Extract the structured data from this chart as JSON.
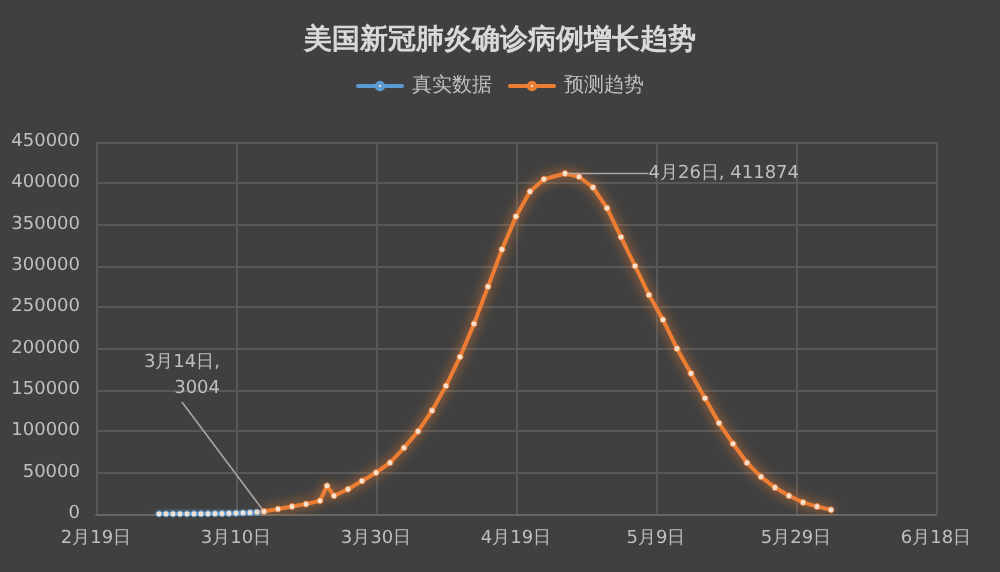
{
  "chart_data": {
    "type": "line",
    "title": "美国新冠肺炎确诊病例增长趋势",
    "series": [
      {
        "name": "真实数据",
        "color": "#5b9bd5",
        "x": [
          "--02-28",
          "--02-29",
          "--03-01",
          "--03-02",
          "--03-03",
          "--03-04",
          "--03-05",
          "--03-06",
          "--03-07",
          "--03-08",
          "--03-09",
          "--03-10",
          "--03-11",
          "--03-12",
          "--03-13",
          "--03-14"
        ],
        "values": [
          100,
          100,
          100,
          100,
          100,
          200,
          200,
          300,
          400,
          500,
          700,
          1000,
          1300,
          1600,
          2200,
          3004
        ]
      },
      {
        "name": "预测趋势",
        "color": "#ed7d31",
        "x": [
          "--03-14",
          "--03-16",
          "--03-18",
          "--03-20",
          "--03-22",
          "--03-23",
          "--03-24",
          "--03-26",
          "--03-28",
          "--03-30",
          "--04-01",
          "--04-03",
          "--04-05",
          "--04-07",
          "--04-09",
          "--04-11",
          "--04-13",
          "--04-15",
          "--04-17",
          "--04-19",
          "--04-21",
          "--04-23",
          "--04-26",
          "--04-28",
          "--04-30",
          "--05-02",
          "--05-04",
          "--05-06",
          "--05-08",
          "--05-10",
          "--05-12",
          "--05-14",
          "--05-16",
          "--05-18",
          "--05-20",
          "--05-22",
          "--05-24",
          "--05-26",
          "--05-28",
          "--05-30",
          "--06-01",
          "--06-03"
        ],
        "values": [
          3004,
          6000,
          9000,
          12000,
          16000,
          34000,
          22000,
          30000,
          40000,
          50000,
          62000,
          80000,
          100000,
          125000,
          155000,
          190000,
          230000,
          275000,
          320000,
          360000,
          390000,
          405000,
          411874,
          408000,
          395000,
          370000,
          335000,
          300000,
          265000,
          235000,
          200000,
          170000,
          140000,
          110000,
          85000,
          62000,
          45000,
          32000,
          22000,
          14000,
          9000,
          5000
        ]
      }
    ],
    "annotations": [
      {
        "text": "3月14日,\n3004",
        "x": "--03-14",
        "y": 3004
      },
      {
        "text": "4月26日, 411874",
        "x": "--04-26",
        "y": 411874
      }
    ],
    "xlim": [
      "--02-19",
      "--06-18"
    ],
    "xticks": [
      {
        "value": "--02-19",
        "label": "2月19日"
      },
      {
        "value": "--03-10",
        "label": "3月10日"
      },
      {
        "value": "--03-30",
        "label": "3月30日"
      },
      {
        "value": "--04-19",
        "label": "4月19日"
      },
      {
        "value": "--05-09",
        "label": "5月9日"
      },
      {
        "value": "--05-29",
        "label": "5月29日"
      },
      {
        "value": "--06-18",
        "label": "6月18日"
      }
    ],
    "ylim": [
      0,
      450000
    ],
    "yticks": [
      0,
      50000,
      100000,
      150000,
      200000,
      250000,
      300000,
      350000,
      400000,
      450000
    ],
    "grid": true,
    "legend": "top",
    "marker": "circle",
    "line_style": "solid"
  }
}
